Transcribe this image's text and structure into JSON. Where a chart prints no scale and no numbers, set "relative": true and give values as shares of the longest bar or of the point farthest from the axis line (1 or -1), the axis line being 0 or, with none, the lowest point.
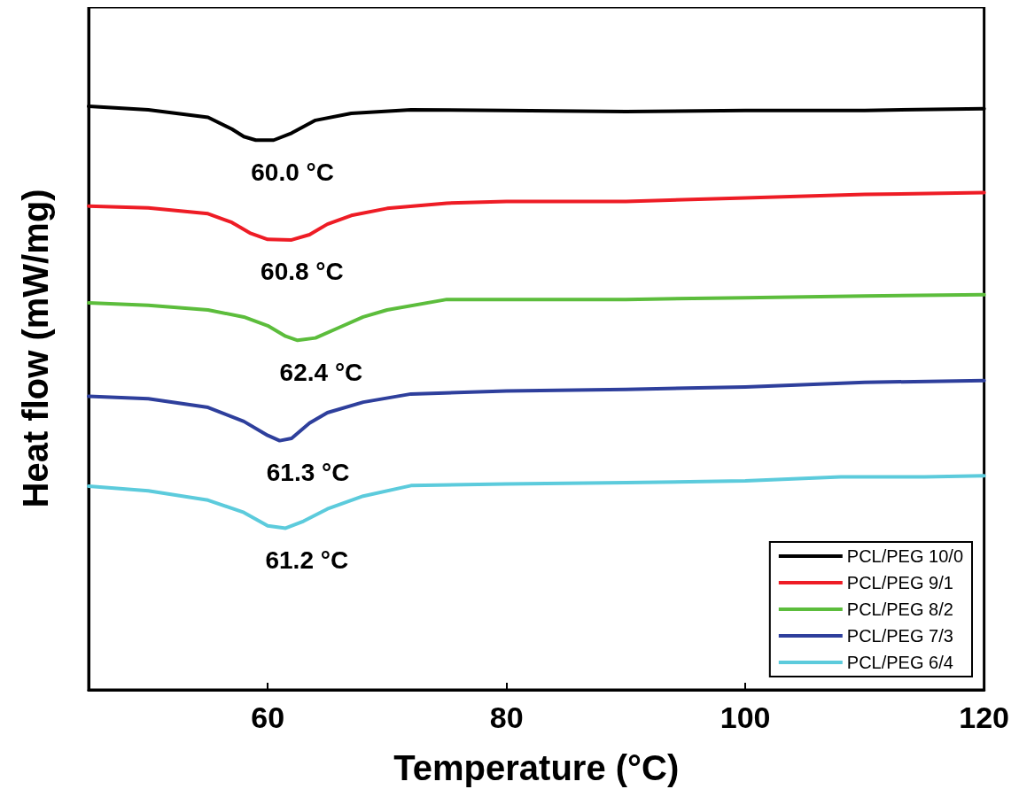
{
  "chart_data": {
    "type": "line",
    "relative": true,
    "xlabel": "Temperature (°C)",
    "ylabel": "Heat flow (mW/mg)",
    "xlim": [
      45,
      120
    ],
    "xticks": [
      60,
      80,
      100,
      120
    ],
    "grid": false,
    "legend": "bottom right",
    "marker": "none",
    "line_style": "solid",
    "series": [
      {
        "name": "PCL/PEG 10/0",
        "color": "#000000",
        "x": [
          45,
          50,
          55,
          57,
          58,
          59,
          60.5,
          62,
          64,
          67,
          72,
          80,
          90,
          100,
          110,
          120
        ],
        "values": [
          1.0,
          0.994,
          0.981,
          0.961,
          0.948,
          0.942,
          0.942,
          0.954,
          0.976,
          0.988,
          0.994,
          0.993,
          0.991,
          0.993,
          0.993,
          0.996
        ]
      },
      {
        "name": "PCL/PEG 9/1",
        "color": "#ee1c25",
        "x": [
          45,
          50,
          55,
          57,
          58.5,
          60,
          62,
          63.5,
          65,
          67,
          70,
          75,
          80,
          90,
          100,
          110,
          120
        ],
        "values": [
          0.829,
          0.826,
          0.816,
          0.801,
          0.783,
          0.772,
          0.771,
          0.78,
          0.798,
          0.813,
          0.825,
          0.834,
          0.837,
          0.837,
          0.843,
          0.849,
          0.852
        ]
      },
      {
        "name": "PCL/PEG 8/2",
        "color": "#5cbd3c",
        "x": [
          45,
          50,
          55,
          58,
          60,
          61.5,
          62.5,
          64,
          66,
          68,
          70,
          75,
          80,
          90,
          100,
          110,
          120
        ],
        "values": [
          0.663,
          0.659,
          0.651,
          0.639,
          0.624,
          0.606,
          0.599,
          0.603,
          0.621,
          0.639,
          0.651,
          0.669,
          0.669,
          0.669,
          0.672,
          0.675,
          0.677
        ]
      },
      {
        "name": "PCL/PEG 7/3",
        "color": "#2e3f9c",
        "x": [
          45,
          50,
          55,
          58,
          60,
          61,
          62,
          63.5,
          65,
          68,
          72,
          80,
          90,
          100,
          110,
          120
        ],
        "values": [
          0.503,
          0.499,
          0.484,
          0.46,
          0.436,
          0.427,
          0.431,
          0.457,
          0.475,
          0.493,
          0.507,
          0.512,
          0.515,
          0.519,
          0.527,
          0.53
        ]
      },
      {
        "name": "PCL/PEG 6/4",
        "color": "#5ccbdc",
        "x": [
          45,
          50,
          55,
          58,
          60,
          61.5,
          63,
          65,
          68,
          72,
          80,
          90,
          100,
          108,
          115,
          120
        ],
        "values": [
          0.349,
          0.341,
          0.325,
          0.304,
          0.281,
          0.277,
          0.289,
          0.31,
          0.332,
          0.35,
          0.353,
          0.355,
          0.358,
          0.365,
          0.365,
          0.367
        ]
      }
    ],
    "annotations": [
      {
        "text": "60.0 °C",
        "x": 60.0,
        "y": 0.942
      },
      {
        "text": "60.8 °C",
        "x": 60.8,
        "y": 0.771
      },
      {
        "text": "62.4 °C",
        "x": 62.4,
        "y": 0.599
      },
      {
        "text": "61.3 °C",
        "x": 61.3,
        "y": 0.427
      },
      {
        "text": "61.2 °C",
        "x": 61.2,
        "y": 0.277
      }
    ]
  }
}
